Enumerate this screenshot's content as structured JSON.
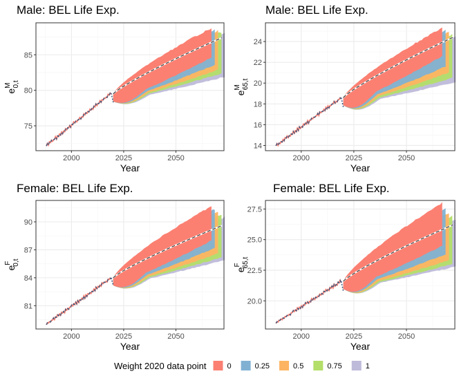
{
  "legend": {
    "title": "Weight 2020 data point",
    "placement": "bottom",
    "entries": [
      {
        "label": "0",
        "color": "#FB8072"
      },
      {
        "label": "0.25",
        "color": "#80B1D3"
      },
      {
        "label": "0.5",
        "color": "#FDB462"
      },
      {
        "label": "0.75",
        "color": "#B3DE69"
      },
      {
        "label": "1",
        "color": "#BEBADA"
      }
    ]
  },
  "colors": {
    "panel_border": "#333333",
    "grid_major": "#EBEBEB",
    "grid_minor": "#F5F5F5",
    "observed_line": "#FB8072",
    "observed_dash": "#3D5A80",
    "median_white": "#FFFFFF",
    "median_dash": "#333333"
  },
  "chart_data": [
    {
      "type": "area",
      "title": "Male: BEL Life Exp.",
      "xlabel": "Year",
      "ylabel_main": "e",
      "ylabel_sup": "M",
      "ylabel_sub": "0,t",
      "xlim": [
        1983,
        2073
      ],
      "ylim": [
        71.5,
        89.5
      ],
      "x_ticks": [
        2000,
        2025,
        2050
      ],
      "x_tick_labels": [
        "2000",
        "2025",
        "2050"
      ],
      "y_ticks": [
        75,
        80,
        85
      ],
      "y_tick_labels": [
        "75",
        "80",
        "85"
      ],
      "observed": {
        "start_year": 1988,
        "end_year": 2019,
        "start_value": 72.2,
        "end_value": 79.6
      },
      "jump_2020": 78.3,
      "forecast": {
        "start_year": 2020,
        "end_year": 2067,
        "median_start": 79.5,
        "median_end": 87.4,
        "upper_end": 88.8,
        "lower_end": 81.9,
        "lower_dip": 78.1
      },
      "series": [
        {
          "name": "0",
          "upper_end": 88.8,
          "lower_end": 84.6
        },
        {
          "name": "0.25",
          "upper_end": 88.6,
          "lower_end": 83.6
        },
        {
          "name": "0.5",
          "upper_end": 88.4,
          "lower_end": 82.9
        },
        {
          "name": "0.75",
          "upper_end": 88.2,
          "lower_end": 82.4
        },
        {
          "name": "1",
          "upper_end": 88.0,
          "lower_end": 81.9
        }
      ]
    },
    {
      "type": "area",
      "title": "Male: BEL Life Exp.",
      "xlabel": "Year",
      "ylabel_main": "e",
      "ylabel_sup": "M",
      "ylabel_sub": "65,t",
      "xlim": [
        1983,
        2073
      ],
      "ylim": [
        13.5,
        25.8
      ],
      "x_ticks": [
        2000,
        2025,
        2050
      ],
      "x_tick_labels": [
        "2000",
        "2025",
        "2050"
      ],
      "y_ticks": [
        14,
        16,
        18,
        20,
        22,
        24
      ],
      "y_tick_labels": [
        "14",
        "16",
        "18",
        "20",
        "22",
        "24"
      ],
      "observed": {
        "start_year": 1988,
        "end_year": 2019,
        "start_value": 14.0,
        "end_value": 18.6
      },
      "jump_2020": 17.7,
      "forecast": {
        "start_year": 2020,
        "end_year": 2067,
        "median_start": 18.6,
        "median_end": 24.4,
        "upper_end": 25.3,
        "lower_end": 20.1,
        "lower_dip": 17.3
      },
      "series": [
        {
          "name": "0",
          "upper_end": 25.3,
          "lower_end": 22.6
        },
        {
          "name": "0.25",
          "upper_end": 25.1,
          "lower_end": 21.6
        },
        {
          "name": "0.5",
          "upper_end": 24.9,
          "lower_end": 21.0
        },
        {
          "name": "0.75",
          "upper_end": 24.7,
          "lower_end": 20.5
        },
        {
          "name": "1",
          "upper_end": 24.5,
          "lower_end": 20.1
        }
      ]
    },
    {
      "type": "area",
      "title": "Female: BEL Life Exp.",
      "xlabel": "Year",
      "ylabel_main": "e",
      "ylabel_sup": "F",
      "ylabel_sub": "0,t",
      "xlim": [
        1983,
        2073
      ],
      "ylim": [
        78.5,
        92.3
      ],
      "x_ticks": [
        2000,
        2025,
        2050
      ],
      "x_tick_labels": [
        "2000",
        "2025",
        "2050"
      ],
      "y_ticks": [
        81,
        84,
        87,
        90
      ],
      "y_tick_labels": [
        "81",
        "84",
        "87",
        "90"
      ],
      "observed": {
        "start_year": 1988,
        "end_year": 2019,
        "start_value": 79.0,
        "end_value": 84.0
      },
      "jump_2020": 83.2,
      "forecast": {
        "start_year": 2020,
        "end_year": 2067,
        "median_start": 84.0,
        "median_end": 89.6,
        "upper_end": 91.7,
        "lower_end": 85.9,
        "lower_dip": 82.8
      },
      "series": [
        {
          "name": "0",
          "upper_end": 91.7,
          "lower_end": 88.0
        },
        {
          "name": "0.25",
          "upper_end": 91.4,
          "lower_end": 87.2
        },
        {
          "name": "0.5",
          "upper_end": 91.1,
          "lower_end": 86.6
        },
        {
          "name": "0.75",
          "upper_end": 90.8,
          "lower_end": 86.2
        },
        {
          "name": "1",
          "upper_end": 90.5,
          "lower_end": 85.9
        }
      ]
    },
    {
      "type": "area",
      "title": "Female: BEL Life Exp.",
      "xlabel": "Year",
      "ylabel_main": "e",
      "ylabel_sup": "F",
      "ylabel_sub": "65,t",
      "xlim": [
        1983,
        2073
      ],
      "ylim": [
        17.7,
        28.2
      ],
      "x_ticks": [
        2000,
        2025,
        2050
      ],
      "x_tick_labels": [
        "2000",
        "2025",
        "2050"
      ],
      "y_ticks": [
        20.0,
        22.5,
        25.0,
        27.5
      ],
      "y_tick_labels": [
        "20.0",
        "22.5",
        "25.0",
        "27.5"
      ],
      "observed": {
        "start_year": 1988,
        "end_year": 2019,
        "start_value": 18.2,
        "end_value": 21.6
      },
      "jump_2020": 20.8,
      "forecast": {
        "start_year": 2020,
        "end_year": 2067,
        "median_start": 21.6,
        "median_end": 26.2,
        "upper_end": 28.0,
        "lower_end": 22.8,
        "lower_dip": 20.5
      },
      "series": [
        {
          "name": "0",
          "upper_end": 28.0,
          "lower_end": 24.5
        },
        {
          "name": "0.25",
          "upper_end": 27.6,
          "lower_end": 23.8
        },
        {
          "name": "0.5",
          "upper_end": 27.2,
          "lower_end": 23.3
        },
        {
          "name": "0.75",
          "upper_end": 26.9,
          "lower_end": 23.0
        },
        {
          "name": "1",
          "upper_end": 26.6,
          "lower_end": 22.8
        }
      ]
    }
  ]
}
